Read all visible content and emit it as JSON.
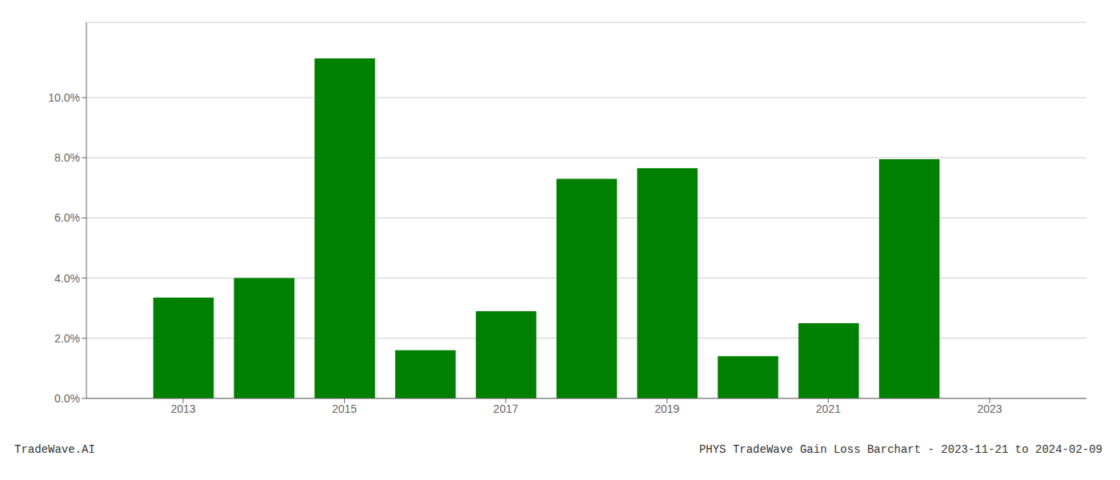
{
  "chart_data": {
    "type": "bar",
    "x": [
      2013,
      2014,
      2015,
      2016,
      2017,
      2018,
      2019,
      2020,
      2021,
      2022,
      2023
    ],
    "values": [
      0.0335,
      0.04,
      0.113,
      0.016,
      0.029,
      0.073,
      0.0765,
      0.014,
      0.025,
      0.0795,
      0.0
    ],
    "color": "#008000",
    "xlim": [
      2011.8,
      2024.2
    ],
    "xticks": [
      2013,
      2015,
      2017,
      2019,
      2021,
      2023
    ],
    "ylim": [
      0,
      0.125
    ],
    "yticks": [
      {
        "value": 0.0,
        "label": "0.0%"
      },
      {
        "value": 0.02,
        "label": "2.0%"
      },
      {
        "value": 0.04,
        "label": "4.0%"
      },
      {
        "value": 0.06,
        "label": "6.0%"
      },
      {
        "value": 0.08,
        "label": "8.0%"
      },
      {
        "value": 0.1,
        "label": "10.0%"
      }
    ],
    "grid": true,
    "annotations": [
      "TradeWave.AI",
      "PHYS TradeWave Gain Loss Barchart - 2023-11-21 to 2024-02-09"
    ]
  }
}
